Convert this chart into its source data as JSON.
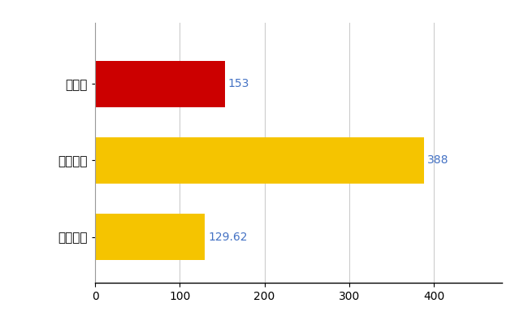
{
  "categories": [
    "広島県",
    "全国最大",
    "全国平均"
  ],
  "values": [
    153,
    388,
    129.62
  ],
  "bar_colors": [
    "#CC0000",
    "#F5C400",
    "#F5C400"
  ],
  "value_labels": [
    "153",
    "388",
    "129.62"
  ],
  "value_label_color": "#4472C4",
  "xlim": [
    0,
    480
  ],
  "xticks": [
    0,
    100,
    200,
    300,
    400
  ],
  "background_color": "#FFFFFF",
  "grid_color": "#CCCCCC",
  "bar_height": 0.6,
  "label_fontsize": 11,
  "tick_fontsize": 10,
  "value_fontsize": 10
}
